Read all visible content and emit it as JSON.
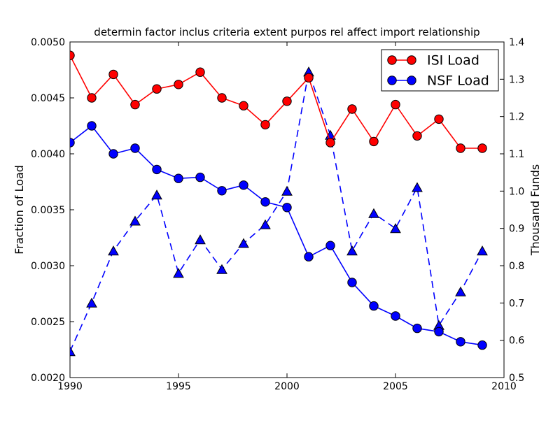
{
  "chart_data": {
    "type": "line",
    "title": "determin factor inclus criteria extent purpos rel affect import relationship",
    "background_color": "#ffffff",
    "frame_color": "#000000",
    "x": [
      1990,
      1991,
      1992,
      1993,
      1994,
      1995,
      1996,
      1997,
      1998,
      1999,
      2000,
      2001,
      2002,
      2003,
      2004,
      2005,
      2006,
      2007,
      2008,
      2009
    ],
    "x_axis": {
      "min": 1990,
      "max": 2010,
      "ticks": [
        1990,
        1995,
        2000,
        2005,
        2010
      ],
      "tick_labels": [
        "1990",
        "1995",
        "2000",
        "2005",
        "2010"
      ]
    },
    "left_axis": {
      "label": "Fraction of Load",
      "min": 0.002,
      "max": 0.005,
      "ticks": [
        0.002,
        0.0025,
        0.003,
        0.0035,
        0.004,
        0.0045,
        0.005
      ],
      "tick_labels": [
        "0.0020",
        "0.0025",
        "0.0030",
        "0.0035",
        "0.0040",
        "0.0045",
        "0.0050"
      ]
    },
    "right_axis": {
      "label": "Thousand Funds",
      "min": 0.5,
      "max": 1.4,
      "ticks": [
        0.5,
        0.6,
        0.7,
        0.8,
        0.9,
        1.0,
        1.1,
        1.2,
        1.3,
        1.4
      ],
      "tick_labels": [
        "0.5",
        "0.6",
        "0.7",
        "0.8",
        "0.9",
        "1.0",
        "1.1",
        "1.2",
        "1.3",
        "1.4"
      ]
    },
    "series": [
      {
        "name": "Thousand Funds (dashed)",
        "slug": "thousand-funds",
        "axis": "right",
        "color": "#0000ff",
        "line_style": "dashed",
        "marker": "triangle-up",
        "in_legend": false,
        "values": [
          0.57,
          0.7,
          0.84,
          0.92,
          0.99,
          0.78,
          0.87,
          0.79,
          0.86,
          0.91,
          1.0,
          1.32,
          1.15,
          0.84,
          0.94,
          0.9,
          1.01,
          0.64,
          0.73,
          0.84
        ]
      },
      {
        "name": "NSF Load",
        "slug": "nsf-load",
        "axis": "left",
        "color": "#0000ff",
        "line_style": "solid",
        "marker": "circle",
        "in_legend": true,
        "values": [
          0.0041,
          0.00425,
          0.004,
          0.00405,
          0.00386,
          0.00378,
          0.00379,
          0.00367,
          0.00372,
          0.00357,
          0.00352,
          0.00308,
          0.00318,
          0.00285,
          0.00264,
          0.00255,
          0.00244,
          0.00241,
          0.00232,
          0.00229
        ]
      },
      {
        "name": "ISI Load",
        "slug": "isi-load",
        "axis": "left",
        "color": "#ff0000",
        "line_style": "solid",
        "marker": "circle",
        "in_legend": true,
        "values": [
          0.00488,
          0.0045,
          0.00471,
          0.00444,
          0.00458,
          0.00462,
          0.00473,
          0.0045,
          0.00443,
          0.00426,
          0.00447,
          0.00468,
          0.0041,
          0.0044,
          0.00411,
          0.00444,
          0.00416,
          0.00431,
          0.00405,
          0.00405
        ]
      }
    ],
    "legend": {
      "position": "upper right",
      "entries": [
        {
          "label": "ISI Load",
          "color": "#ff0000",
          "marker": "circle"
        },
        {
          "label": "NSF Load",
          "color": "#0000ff",
          "marker": "circle"
        }
      ]
    }
  }
}
